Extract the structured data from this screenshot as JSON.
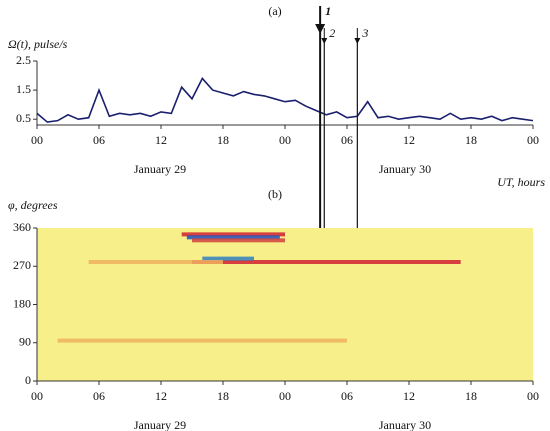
{
  "chart_data": [
    {
      "type": "line",
      "panel_label": "(a)",
      "y_label": "Ω(t), pulse/s",
      "x_label": "UT, hours",
      "day_labels": [
        "January 29",
        "January 30"
      ],
      "x": [
        0,
        1,
        2,
        3,
        4,
        5,
        6,
        7,
        8,
        9,
        10,
        11,
        12,
        13,
        14,
        15,
        16,
        17,
        18,
        19,
        20,
        21,
        22,
        23,
        24,
        25,
        26,
        27,
        28,
        29,
        30,
        31,
        32,
        33,
        34,
        35,
        36,
        37,
        38,
        39,
        40,
        41,
        42,
        43,
        44,
        45,
        46,
        47,
        48
      ],
      "series": [
        {
          "color": "#1a1f6e",
          "values": [
            0.7,
            0.4,
            0.45,
            0.65,
            0.5,
            0.55,
            1.5,
            0.6,
            0.7,
            0.65,
            0.7,
            0.6,
            0.75,
            0.7,
            1.6,
            1.2,
            1.9,
            1.5,
            1.4,
            1.3,
            1.45,
            1.35,
            1.3,
            1.2,
            1.1,
            1.15,
            0.95,
            0.8,
            0.65,
            0.75,
            0.55,
            0.6,
            1.1,
            0.55,
            0.6,
            0.5,
            0.55,
            0.6,
            0.55,
            0.5,
            0.7,
            0.5,
            0.55,
            0.5,
            0.6,
            0.45,
            0.55,
            0.5,
            0.45
          ]
        }
      ],
      "xlim": [
        0,
        48
      ],
      "xticks": [
        {
          "value": 0,
          "label": "00"
        },
        {
          "value": 6,
          "label": "06"
        },
        12,
        18,
        {
          "value": 24,
          "label": "00"
        },
        {
          "value": 30,
          "label": "06"
        },
        {
          "value": 36,
          "label": "12"
        },
        {
          "value": 42,
          "label": "18"
        },
        {
          "value": 48,
          "label": "00"
        }
      ],
      "ylim": [
        0.3,
        2.5
      ],
      "yticks": [
        0.5,
        1.5,
        2.5
      ],
      "events": [
        {
          "label": "1",
          "x": 27.4
        },
        {
          "label": "2",
          "x": 27.8
        },
        {
          "label": "3",
          "x": 31.0
        }
      ]
    },
    {
      "type": "heatmap",
      "panel_label": "(b)",
      "y_label": "φ, degrees",
      "x_label": "UT, hours",
      "day_labels": [
        "January 29",
        "January 30"
      ],
      "background": "#f7f08a",
      "streaks": [
        {
          "x": [
            14,
            24
          ],
          "y": 345,
          "color": "#d02030"
        },
        {
          "x": [
            14.5,
            23.5
          ],
          "y": 338,
          "color": "#2050c0"
        },
        {
          "x": [
            15,
            24
          ],
          "y": 331,
          "color": "#d04040"
        },
        {
          "x": [
            15,
            41
          ],
          "y": 280,
          "color": "#d02030"
        },
        {
          "x": [
            16,
            21
          ],
          "y": 288,
          "color": "#3080c0"
        },
        {
          "x": [
            2,
            30
          ],
          "y": 95,
          "color": "#f0b060"
        },
        {
          "x": [
            5,
            18
          ],
          "y": 280,
          "color": "#f0b060"
        }
      ],
      "xlim": [
        0,
        48
      ],
      "xticks": [
        {
          "value": 0,
          "label": "00"
        },
        {
          "value": 6,
          "label": "06"
        },
        12,
        18,
        {
          "value": 24,
          "label": "00"
        },
        {
          "value": 30,
          "label": "06"
        },
        {
          "value": 36,
          "label": "12"
        },
        {
          "value": 42,
          "label": "18"
        },
        {
          "value": 48,
          "label": "00"
        }
      ],
      "ylim": [
        0,
        360
      ],
      "yticks": [
        0,
        90,
        180,
        270,
        360
      ]
    }
  ]
}
